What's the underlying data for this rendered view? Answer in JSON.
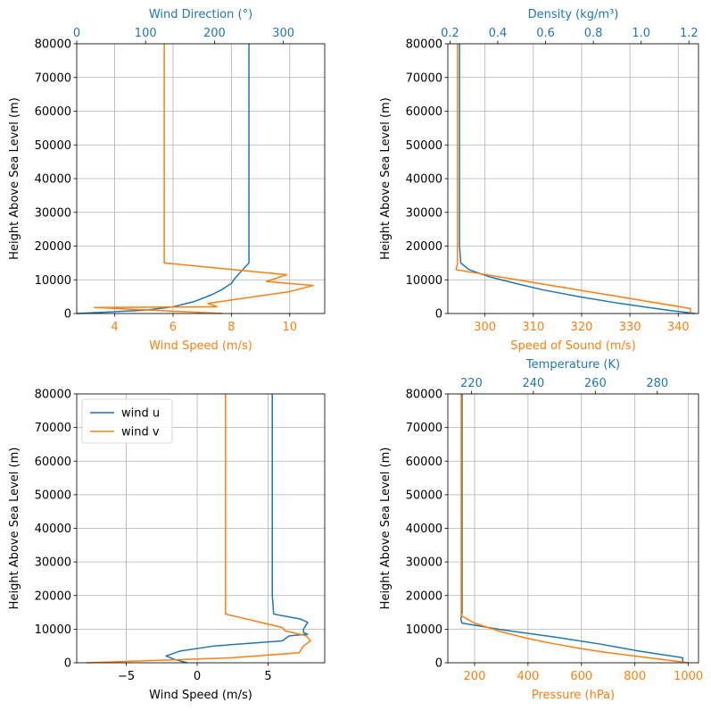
{
  "colors": {
    "blue": "#1f77b4",
    "orange": "#ff7f0e",
    "grid": "#b0b0b0",
    "axis": "#000000"
  },
  "chart_data": [
    {
      "type": "line",
      "ylabel": "Height Above Sea Level (m)",
      "ylim": [
        0,
        80000
      ],
      "yticks": [
        0,
        10000,
        20000,
        30000,
        40000,
        50000,
        60000,
        70000,
        80000
      ],
      "grid": true,
      "bottom_axis": {
        "label": "Wind Speed (m/s)",
        "color": "#ff7f0e",
        "range": [
          2.7,
          11.2
        ],
        "ticks": [
          4,
          6,
          8,
          10
        ],
        "tick_labels": [
          "4",
          "6",
          "8",
          "10"
        ]
      },
      "top_axis": {
        "label": "Wind Direction (°)",
        "color": "#1f77b4",
        "range": [
          0,
          360
        ],
        "ticks": [
          0,
          100,
          200,
          300
        ],
        "tick_labels": [
          "0",
          "100",
          "200",
          "300"
        ]
      },
      "series": [
        {
          "color": "#1f77b4",
          "axis": "top",
          "x": [
            0,
            100,
            140,
            170,
            195,
            210,
            225,
            228,
            232,
            250,
            250,
            250
          ],
          "y": [
            0,
            1000,
            2000,
            3500,
            5500,
            7000,
            9000,
            10000,
            11000,
            15000,
            20000,
            80000
          ]
        },
        {
          "color": "#ff7f0e",
          "axis": "bottom",
          "x": [
            7.7,
            3.3,
            7.5,
            7.2,
            10.0,
            10.8,
            9.2,
            9.9,
            5.7,
            5.7,
            5.7
          ],
          "y": [
            0,
            1800,
            2000,
            3000,
            6500,
            8300,
            9500,
            11500,
            15000,
            20000,
            80000
          ]
        }
      ]
    },
    {
      "type": "line",
      "ylabel": "Height Above Sea Level (m)",
      "ylim": [
        0,
        80000
      ],
      "yticks": [
        0,
        10000,
        20000,
        30000,
        40000,
        50000,
        60000,
        70000,
        80000
      ],
      "grid": true,
      "bottom_axis": {
        "label": "Speed of Sound (m/s)",
        "color": "#ff7f0e",
        "range": [
          292.3,
          344.2
        ],
        "ticks": [
          300,
          310,
          320,
          330,
          340
        ],
        "tick_labels": [
          "300",
          "310",
          "320",
          "330",
          "340"
        ]
      },
      "top_axis": {
        "label": "Density (kg/m³)",
        "color": "#1f77b4",
        "range": [
          0.191,
          1.24
        ],
        "ticks": [
          0.2,
          0.4,
          0.6,
          0.8,
          1.0,
          1.2
        ],
        "tick_labels": [
          "0.2",
          "0.4",
          "0.6",
          "0.8",
          "1.0",
          "1.2"
        ]
      },
      "series": [
        {
          "color": "#1f77b4",
          "axis": "top",
          "x": [
            1.225,
            1.11,
            0.91,
            0.74,
            0.59,
            0.47,
            0.36,
            0.28,
            0.245,
            0.24,
            0.24
          ],
          "y": [
            0,
            1000,
            3000,
            5000,
            7000,
            9000,
            11000,
            13000,
            15000,
            20000,
            80000
          ]
        },
        {
          "color": "#ff7f0e",
          "axis": "bottom",
          "x": [
            342.5,
            342.5,
            294.0,
            294.3,
            294.3
          ],
          "y": [
            0,
            1500,
            13000,
            15000,
            80000
          ]
        }
      ]
    },
    {
      "type": "line",
      "ylabel": "Height Above Sea Level (m)",
      "xlabel": "Wind Speed (m/s)",
      "ylim": [
        0,
        80000
      ],
      "yticks": [
        0,
        10000,
        20000,
        30000,
        40000,
        50000,
        60000,
        70000,
        80000
      ],
      "xlim": [
        -8.5,
        9
      ],
      "xticks": [
        -5,
        0,
        5
      ],
      "xtick_labels": [
        "−5",
        "0",
        "5"
      ],
      "grid": true,
      "legend": {
        "placement": "top-left",
        "entries": [
          "wind u",
          "wind v"
        ]
      },
      "series": [
        {
          "name": "wind u",
          "color": "#1f77b4",
          "x": [
            -0.7,
            -1.6,
            -2.2,
            -1.2,
            1.2,
            6.0,
            6.5,
            7.8,
            7.5,
            7.5,
            7.8,
            7.3,
            5.4,
            5.3,
            5.3
          ],
          "y": [
            0,
            1000,
            2000,
            3500,
            5000,
            6500,
            8000,
            8500,
            9000,
            10000,
            12000,
            13000,
            14500,
            20000,
            80000
          ]
        },
        {
          "name": "wind v",
          "color": "#ff7f0e",
          "x": [
            -7.8,
            -0.8,
            2.5,
            7.2,
            7.5,
            8.0,
            7.7,
            6.2,
            6.0,
            2.0,
            2.0
          ],
          "y": [
            0,
            1000,
            1500,
            3000,
            5000,
            6500,
            8000,
            9500,
            10500,
            14500,
            80000
          ]
        }
      ]
    },
    {
      "type": "line",
      "ylabel": "Height Above Sea Level (m)",
      "ylim": [
        0,
        80000
      ],
      "yticks": [
        0,
        10000,
        20000,
        30000,
        40000,
        50000,
        60000,
        70000,
        80000
      ],
      "grid": true,
      "bottom_axis": {
        "label": "Pressure (hPa)",
        "color": "#ff7f0e",
        "range": [
          100,
          1038
        ],
        "ticks": [
          200,
          400,
          600,
          800,
          1000
        ],
        "tick_labels": [
          "200",
          "400",
          "600",
          "800",
          "1000"
        ]
      },
      "top_axis": {
        "label": "Temperature (K)",
        "color": "#1f77b4",
        "range": [
          212.4,
          293.3
        ],
        "ticks": [
          220,
          240,
          260,
          280
        ],
        "tick_labels": [
          "220",
          "240",
          "260",
          "280"
        ]
      },
      "series": [
        {
          "color": "#1f77b4",
          "axis": "top",
          "x": [
            288.2,
            288.2,
            274.0,
            262.0,
            248.0,
            230.0,
            217.0,
            216.6,
            217.0,
            217.0
          ],
          "y": [
            0,
            1500,
            3500,
            5500,
            7500,
            9800,
            11800,
            13000,
            15000,
            80000
          ]
        },
        {
          "color": "#ff7f0e",
          "axis": "bottom",
          "x": [
            1000,
            900,
            800,
            700,
            600,
            500,
            400,
            300,
            200,
            150,
            150,
            150
          ],
          "y": [
            0,
            1000,
            2000,
            3000,
            4200,
            5600,
            7200,
            9200,
            11800,
            14000,
            20000,
            80000
          ]
        }
      ]
    }
  ]
}
